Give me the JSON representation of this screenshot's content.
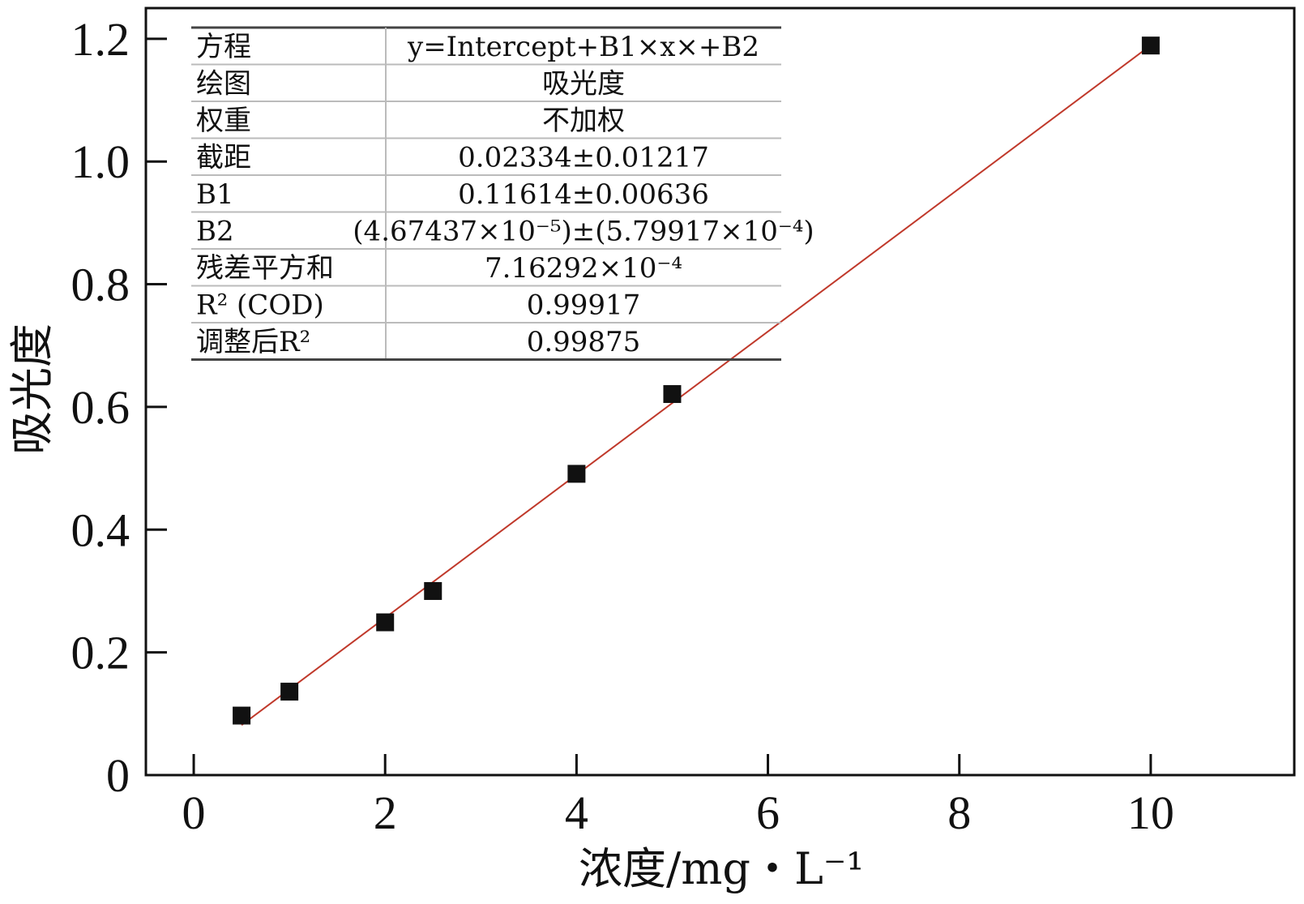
{
  "chart_data": {
    "type": "scatter",
    "xlabel": "浓度/mg・L⁻¹",
    "ylabel": "吸光度",
    "xlim": [
      -0.5,
      11.5
    ],
    "ylim": [
      0,
      1.25
    ],
    "x_ticks": [
      0,
      2,
      4,
      6,
      8,
      10
    ],
    "y_ticks": [
      0,
      0.2,
      0.4,
      0.6,
      0.8,
      1.0,
      1.2
    ],
    "x_tick_labels": [
      "0",
      "2",
      "4",
      "6",
      "8",
      "10"
    ],
    "y_tick_labels": [
      "0",
      "0.2",
      "0.4",
      "0.6",
      "0.8",
      "1.0",
      "1.2"
    ],
    "grid": false,
    "series": [
      {
        "points": [
          {
            "x": 0.5,
            "y": 0.097
          },
          {
            "x": 1.0,
            "y": 0.136
          },
          {
            "x": 2.0,
            "y": 0.249
          },
          {
            "x": 2.5,
            "y": 0.3
          },
          {
            "x": 4.0,
            "y": 0.491
          },
          {
            "x": 5.0,
            "y": 0.621
          },
          {
            "x": 10.0,
            "y": 1.189
          }
        ],
        "marker_color": "#111111"
      }
    ],
    "fit_line": {
      "intercept": 0.02334,
      "b1": 0.11614,
      "b2": 4.67437e-05,
      "x_start": 0.5,
      "x_end": 10.0,
      "color": "#c0392b"
    },
    "stats_table": [
      {
        "label": "方程",
        "value": "y=Intercept+B1×x×+B2"
      },
      {
        "label": "绘图",
        "value": "吸光度"
      },
      {
        "label": "权重",
        "value": "不加权"
      },
      {
        "label": "截距",
        "value": "0.02334±0.01217"
      },
      {
        "label": "B1",
        "value": "0.11614±0.00636"
      },
      {
        "label": "B2",
        "value": "(4.67437×10⁻⁵)±(5.79917×10⁻⁴)"
      },
      {
        "label": "残差平方和",
        "value": "7.16292×10⁻⁴"
      },
      {
        "label": "R² (COD)",
        "value": "0.99917"
      },
      {
        "label": "调整后R²",
        "value": "0.99875"
      }
    ]
  }
}
